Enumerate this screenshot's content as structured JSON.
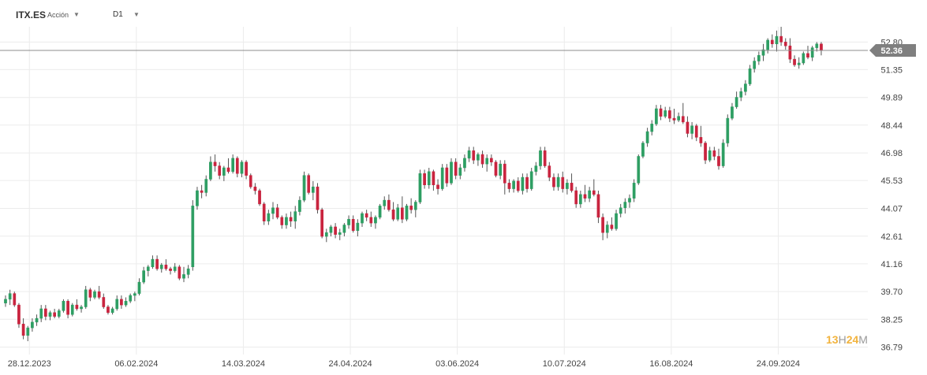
{
  "header": {
    "symbol": "ITX.ES",
    "asset_type": "Acción",
    "timeframe": "D1"
  },
  "brand": {
    "part1": "13",
    "part2": "H",
    "part3": "24",
    "part4": "M"
  },
  "current_price_label": "52.36",
  "colors": {
    "up": "#2e9e63",
    "down": "#c9243f",
    "grid": "#ececec",
    "axis_text": "#444444",
    "price_line": "#8c8c8c",
    "price_label_bg": "#7f7f7f",
    "brand_accent": "#f2b33d"
  },
  "chart_data": {
    "type": "candlestick",
    "symbol": "ITX.ES",
    "timeframe": "D1",
    "ylim": [
      36.4,
      53.6
    ],
    "y_ticks": [
      "52.80",
      "51.35",
      "49.89",
      "48.44",
      "46.98",
      "45.53",
      "44.07",
      "42.61",
      "41.16",
      "39.70",
      "38.25",
      "36.79"
    ],
    "x_ticks": [
      {
        "label": "28.12.2023",
        "index": 5
      },
      {
        "label": "06.02.2024",
        "index": 29
      },
      {
        "label": "14.03.2024",
        "index": 53
      },
      {
        "label": "24.04.2024",
        "index": 77
      },
      {
        "label": "03.06.2024",
        "index": 101
      },
      {
        "label": "10.07.2024",
        "index": 125
      },
      {
        "label": "16.08.2024",
        "index": 149
      },
      {
        "label": "24.09.2024",
        "index": 173
      }
    ],
    "current_price": 52.36,
    "grid": true,
    "candles": [
      [
        39.1,
        39.5,
        38.9,
        39.3
      ],
      [
        39.3,
        39.8,
        39.0,
        39.6
      ],
      [
        39.6,
        39.7,
        38.9,
        39.0
      ],
      [
        39.0,
        39.1,
        37.8,
        38.0
      ],
      [
        38.0,
        38.3,
        37.2,
        37.4
      ],
      [
        37.4,
        37.9,
        37.1,
        37.8
      ],
      [
        37.8,
        38.3,
        37.6,
        38.1
      ],
      [
        38.1,
        38.5,
        37.9,
        38.3
      ],
      [
        38.3,
        39.0,
        38.1,
        38.8
      ],
      [
        38.8,
        39.0,
        38.2,
        38.4
      ],
      [
        38.4,
        38.7,
        38.2,
        38.6
      ],
      [
        38.6,
        38.8,
        38.3,
        38.4
      ],
      [
        38.4,
        38.8,
        38.3,
        38.7
      ],
      [
        38.7,
        39.3,
        38.6,
        39.2
      ],
      [
        39.2,
        39.3,
        38.3,
        38.5
      ],
      [
        38.5,
        39.1,
        38.4,
        39.0
      ],
      [
        39.0,
        39.3,
        38.7,
        38.8
      ],
      [
        38.8,
        39.0,
        38.6,
        38.9
      ],
      [
        38.9,
        40.0,
        38.8,
        39.8
      ],
      [
        39.8,
        39.9,
        39.2,
        39.4
      ],
      [
        39.4,
        39.8,
        39.3,
        39.7
      ],
      [
        39.7,
        40.0,
        39.3,
        39.4
      ],
      [
        39.4,
        39.6,
        38.8,
        38.9
      ],
      [
        38.9,
        39.0,
        38.5,
        38.6
      ],
      [
        38.6,
        38.9,
        38.5,
        38.8
      ],
      [
        38.8,
        39.5,
        38.7,
        39.3
      ],
      [
        39.3,
        39.5,
        38.8,
        39.0
      ],
      [
        39.0,
        39.4,
        38.9,
        39.2
      ],
      [
        39.2,
        39.6,
        39.1,
        39.5
      ],
      [
        39.5,
        39.7,
        39.2,
        39.6
      ],
      [
        39.6,
        40.4,
        39.5,
        40.2
      ],
      [
        40.2,
        41.0,
        40.1,
        40.8
      ],
      [
        40.8,
        41.1,
        40.5,
        41.0
      ],
      [
        41.0,
        41.6,
        40.9,
        41.4
      ],
      [
        41.4,
        41.6,
        40.8,
        40.9
      ],
      [
        40.9,
        41.2,
        40.7,
        41.1
      ],
      [
        41.1,
        41.4,
        40.8,
        40.9
      ],
      [
        40.9,
        41.0,
        40.6,
        40.8
      ],
      [
        40.8,
        41.2,
        40.7,
        41.0
      ],
      [
        41.0,
        41.1,
        40.3,
        40.4
      ],
      [
        40.4,
        41.0,
        40.2,
        40.6
      ],
      [
        40.6,
        41.1,
        40.4,
        40.9
      ],
      [
        41.0,
        44.5,
        40.8,
        44.2
      ],
      [
        44.2,
        45.2,
        44.0,
        45.0
      ],
      [
        45.0,
        45.3,
        44.6,
        44.9
      ],
      [
        44.9,
        45.8,
        44.7,
        45.6
      ],
      [
        45.6,
        46.8,
        45.5,
        46.5
      ],
      [
        46.5,
        46.9,
        46.0,
        46.3
      ],
      [
        46.3,
        46.5,
        45.6,
        45.8
      ],
      [
        45.8,
        46.3,
        45.5,
        46.2
      ],
      [
        46.2,
        46.7,
        45.9,
        46.0
      ],
      [
        46.0,
        46.9,
        45.9,
        46.7
      ],
      [
        46.7,
        46.8,
        45.7,
        45.9
      ],
      [
        45.9,
        46.6,
        45.7,
        46.5
      ],
      [
        46.5,
        46.6,
        45.6,
        45.8
      ],
      [
        45.8,
        45.9,
        45.1,
        45.2
      ],
      [
        45.2,
        45.4,
        44.8,
        45.0
      ],
      [
        45.0,
        45.1,
        44.2,
        44.3
      ],
      [
        44.3,
        44.4,
        43.2,
        43.4
      ],
      [
        43.4,
        44.0,
        43.2,
        43.8
      ],
      [
        43.8,
        44.4,
        43.5,
        44.1
      ],
      [
        44.1,
        44.3,
        43.5,
        43.6
      ],
      [
        43.6,
        43.7,
        43.0,
        43.2
      ],
      [
        43.2,
        43.8,
        43.0,
        43.6
      ],
      [
        43.6,
        43.9,
        43.1,
        43.4
      ],
      [
        43.4,
        44.2,
        43.0,
        43.9
      ],
      [
        43.9,
        44.7,
        43.7,
        44.5
      ],
      [
        44.5,
        46.0,
        44.4,
        45.8
      ],
      [
        45.8,
        45.9,
        44.8,
        44.9
      ],
      [
        44.9,
        45.5,
        44.5,
        45.2
      ],
      [
        45.2,
        45.4,
        43.8,
        44.0
      ],
      [
        44.0,
        44.1,
        42.5,
        42.6
      ],
      [
        42.6,
        43.0,
        42.3,
        42.8
      ],
      [
        42.8,
        43.2,
        42.6,
        43.1
      ],
      [
        43.1,
        43.3,
        42.5,
        42.7
      ],
      [
        42.7,
        43.0,
        42.4,
        42.8
      ],
      [
        42.8,
        43.3,
        42.6,
        43.2
      ],
      [
        43.2,
        43.7,
        43.0,
        43.5
      ],
      [
        43.5,
        43.7,
        42.8,
        42.9
      ],
      [
        42.9,
        43.5,
        42.6,
        43.3
      ],
      [
        43.3,
        43.9,
        43.1,
        43.8
      ],
      [
        43.8,
        44.0,
        43.4,
        43.6
      ],
      [
        43.6,
        43.9,
        43.1,
        43.3
      ],
      [
        43.3,
        43.7,
        43.0,
        43.6
      ],
      [
        43.6,
        44.3,
        43.5,
        44.2
      ],
      [
        44.2,
        44.7,
        44.0,
        44.5
      ],
      [
        44.5,
        44.8,
        43.9,
        44.0
      ],
      [
        44.0,
        44.4,
        43.4,
        43.5
      ],
      [
        43.5,
        44.3,
        43.4,
        44.1
      ],
      [
        44.1,
        44.7,
        43.3,
        43.5
      ],
      [
        43.5,
        44.3,
        43.4,
        44.2
      ],
      [
        44.2,
        44.6,
        43.8,
        44.0
      ],
      [
        44.0,
        44.5,
        43.6,
        44.4
      ],
      [
        44.4,
        46.1,
        44.3,
        45.9
      ],
      [
        45.9,
        46.1,
        45.1,
        45.3
      ],
      [
        45.3,
        46.2,
        45.1,
        46.0
      ],
      [
        46.0,
        46.1,
        45.0,
        45.3
      ],
      [
        45.3,
        45.6,
        44.8,
        45.1
      ],
      [
        45.1,
        46.4,
        45.0,
        46.2
      ],
      [
        46.2,
        46.4,
        45.2,
        45.4
      ],
      [
        45.4,
        46.7,
        45.3,
        46.5
      ],
      [
        46.5,
        46.7,
        45.6,
        45.8
      ],
      [
        45.8,
        46.4,
        45.6,
        46.2
      ],
      [
        46.2,
        46.9,
        46.0,
        46.7
      ],
      [
        46.7,
        47.3,
        46.5,
        47.1
      ],
      [
        47.1,
        47.3,
        46.4,
        46.6
      ],
      [
        46.6,
        47.0,
        46.3,
        46.9
      ],
      [
        46.9,
        47.1,
        46.2,
        46.4
      ],
      [
        46.4,
        46.9,
        46.0,
        46.7
      ],
      [
        46.7,
        46.9,
        46.3,
        46.5
      ],
      [
        46.5,
        46.6,
        45.7,
        45.8
      ],
      [
        45.8,
        46.6,
        45.6,
        46.4
      ],
      [
        46.4,
        46.6,
        44.8,
        45.4
      ],
      [
        45.4,
        45.6,
        44.9,
        45.1
      ],
      [
        45.1,
        45.6,
        44.9,
        45.5
      ],
      [
        45.5,
        45.7,
        44.9,
        45.0
      ],
      [
        45.0,
        45.9,
        44.8,
        45.7
      ],
      [
        45.7,
        45.9,
        44.9,
        45.1
      ],
      [
        45.1,
        46.2,
        45.0,
        46.0
      ],
      [
        46.0,
        46.5,
        45.8,
        46.3
      ],
      [
        46.3,
        47.3,
        46.1,
        47.1
      ],
      [
        47.1,
        47.3,
        46.2,
        46.3
      ],
      [
        46.3,
        46.5,
        45.5,
        45.7
      ],
      [
        45.7,
        45.9,
        45.0,
        45.2
      ],
      [
        45.2,
        45.9,
        45.0,
        45.7
      ],
      [
        45.7,
        46.0,
        44.9,
        45.1
      ],
      [
        45.1,
        45.6,
        44.8,
        45.4
      ],
      [
        45.4,
        45.9,
        44.9,
        45.0
      ],
      [
        45.0,
        45.2,
        44.1,
        44.3
      ],
      [
        44.3,
        45.0,
        44.1,
        44.8
      ],
      [
        44.8,
        45.3,
        44.4,
        44.6
      ],
      [
        44.6,
        45.2,
        44.4,
        45.0
      ],
      [
        45.0,
        45.6,
        44.7,
        44.8
      ],
      [
        44.8,
        45.0,
        43.3,
        43.6
      ],
      [
        43.6,
        43.8,
        42.4,
        42.8
      ],
      [
        42.8,
        43.4,
        42.5,
        43.2
      ],
      [
        43.2,
        43.6,
        42.9,
        43.0
      ],
      [
        43.0,
        44.0,
        42.9,
        43.8
      ],
      [
        43.8,
        44.3,
        43.6,
        44.1
      ],
      [
        44.1,
        44.6,
        43.8,
        44.4
      ],
      [
        44.4,
        44.8,
        44.1,
        44.6
      ],
      [
        44.6,
        45.6,
        44.4,
        45.4
      ],
      [
        45.4,
        46.9,
        45.3,
        46.8
      ],
      [
        46.8,
        47.6,
        46.7,
        47.5
      ],
      [
        47.5,
        48.3,
        47.3,
        48.1
      ],
      [
        48.1,
        48.7,
        47.9,
        48.5
      ],
      [
        48.5,
        49.5,
        48.4,
        49.3
      ],
      [
        49.3,
        49.5,
        48.7,
        48.9
      ],
      [
        48.9,
        49.4,
        48.8,
        49.2
      ],
      [
        49.2,
        49.4,
        48.6,
        48.8
      ],
      [
        48.8,
        49.3,
        48.5,
        48.7
      ],
      [
        48.7,
        49.1,
        48.6,
        48.9
      ],
      [
        48.9,
        49.6,
        48.5,
        48.6
      ],
      [
        48.6,
        48.9,
        47.8,
        48.0
      ],
      [
        48.0,
        48.6,
        47.7,
        48.4
      ],
      [
        48.4,
        48.5,
        47.6,
        47.8
      ],
      [
        47.8,
        48.4,
        47.3,
        47.5
      ],
      [
        47.5,
        47.6,
        46.4,
        46.6
      ],
      [
        46.6,
        47.3,
        46.5,
        47.1
      ],
      [
        47.1,
        47.3,
        46.6,
        46.8
      ],
      [
        46.8,
        47.2,
        46.1,
        46.3
      ],
      [
        46.3,
        47.7,
        46.2,
        47.5
      ],
      [
        47.5,
        49.0,
        47.3,
        48.8
      ],
      [
        48.8,
        49.6,
        48.7,
        49.4
      ],
      [
        49.4,
        50.2,
        49.3,
        49.9
      ],
      [
        49.9,
        50.4,
        49.7,
        50.2
      ],
      [
        50.2,
        50.8,
        50.0,
        50.6
      ],
      [
        50.6,
        51.6,
        50.5,
        51.4
      ],
      [
        51.4,
        52.0,
        51.2,
        51.8
      ],
      [
        51.8,
        52.3,
        51.6,
        52.1
      ],
      [
        52.1,
        52.7,
        51.8,
        52.4
      ],
      [
        52.4,
        53.0,
        52.2,
        52.9
      ],
      [
        52.9,
        53.2,
        52.5,
        52.7
      ],
      [
        52.7,
        53.4,
        52.3,
        53.1
      ],
      [
        53.1,
        53.6,
        52.6,
        52.8
      ],
      [
        52.8,
        53.0,
        52.4,
        52.6
      ],
      [
        52.6,
        53.0,
        51.7,
        51.9
      ],
      [
        51.9,
        52.1,
        51.5,
        51.6
      ],
      [
        51.6,
        52.0,
        51.4,
        51.7
      ],
      [
        51.7,
        52.3,
        51.6,
        52.2
      ],
      [
        52.2,
        52.6,
        51.9,
        52.0
      ],
      [
        52.0,
        52.6,
        51.8,
        52.5
      ],
      [
        52.5,
        52.8,
        52.3,
        52.7
      ],
      [
        52.7,
        52.8,
        52.1,
        52.36
      ]
    ]
  }
}
